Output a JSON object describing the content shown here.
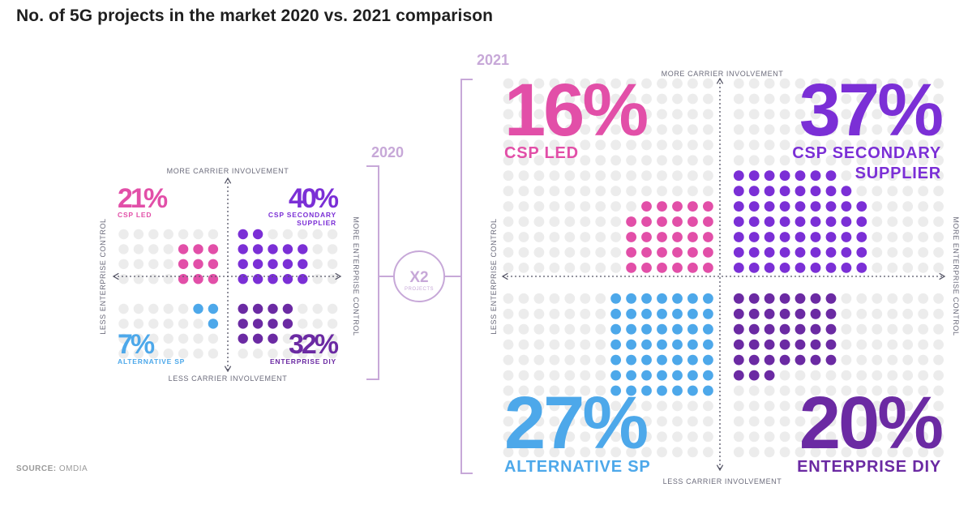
{
  "title": "No. of 5G projects in the market 2020 vs. 2021 comparison",
  "source": {
    "label": "SOURCE:",
    "value": "OMDIA"
  },
  "multiplier": {
    "value": "X2",
    "sub": "PROJECTS"
  },
  "colors": {
    "csp_led": "#e24fa8",
    "csp_secondary": "#7b2fd6",
    "alternative_sp": "#4da8ea",
    "enterprise_diy": "#6b2aa3",
    "bg_dot": "#ececec",
    "bracket": "#c7a8d8"
  },
  "axes": {
    "top": "MORE CARRIER INVOLVEMENT",
    "bottom": "LESS CARRIER INVOLVEMENT",
    "left": "LESS ENTERPRISE CONTROL",
    "right": "MORE ENTERPRISE CONTROL"
  },
  "chart_data": [
    {
      "type": "quadrant",
      "year": "2020",
      "quadrants": [
        {
          "label": "CSP LED",
          "percent_label": "21%",
          "value": 21,
          "position": "top-left"
        },
        {
          "label": "CSP SECONDARY SUPPLIER",
          "label_line1": "CSP SECONDARY",
          "label_line2": "SUPPLIER",
          "percent_label": "40%",
          "value": 40,
          "position": "top-right"
        },
        {
          "label": "ALTERNATIVE SP",
          "percent_label": "7%",
          "value": 7,
          "position": "bottom-left"
        },
        {
          "label": "ENTERPRISE DIY",
          "percent_label": "32%",
          "value": 32,
          "position": "bottom-right"
        }
      ]
    },
    {
      "type": "quadrant",
      "year": "2021",
      "quadrants": [
        {
          "label": "CSP LED",
          "percent_label": "16%",
          "value": 16,
          "position": "top-left"
        },
        {
          "label": "CSP SECONDARY SUPPLIER",
          "label_line1": "CSP SECONDARY",
          "label_line2": "SUPPLIER",
          "percent_label": "37%",
          "value": 37,
          "position": "top-right"
        },
        {
          "label": "ALTERNATIVE SP",
          "percent_label": "27%",
          "value": 27,
          "position": "bottom-left"
        },
        {
          "label": "ENTERPRISE DIY",
          "percent_label": "20%",
          "value": 20,
          "position": "bottom-right"
        }
      ]
    }
  ]
}
